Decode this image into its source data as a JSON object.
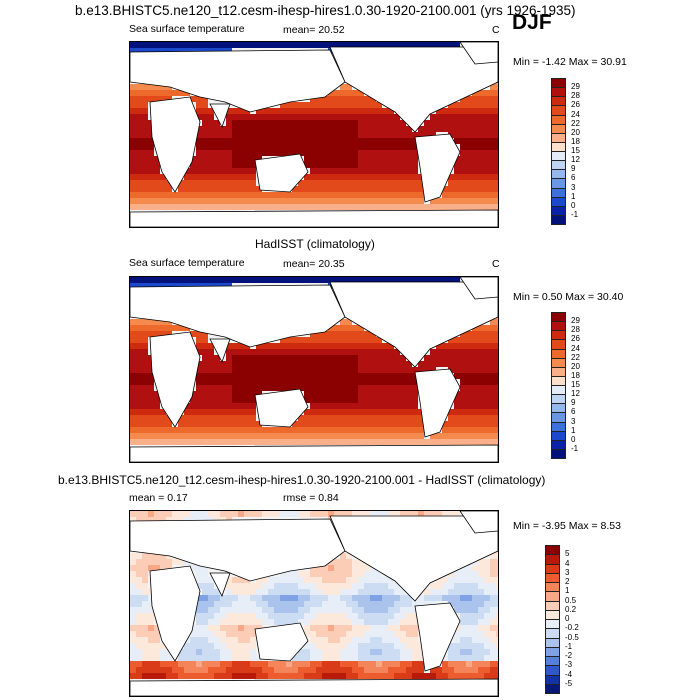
{
  "season": "DJF",
  "chart_data": [
    {
      "type": "heatmap",
      "title": "b.e13.BHISTC5.ne120_t12.cesm-ihesp-hires1.0.30-1920-2100.001 (yrs 1926-1935)",
      "left_label": "Sea surface temperature",
      "mean_text": "mean=  20.52",
      "units": "C",
      "minmax_text": "Min =  -1.42 Max =  30.91",
      "min": -1.42,
      "max": 30.91,
      "colorbar_levels": [
        "29",
        "28",
        "26",
        "24",
        "22",
        "20",
        "18",
        "15",
        "12",
        "9",
        "6",
        "3",
        "1",
        "0",
        "-1"
      ],
      "colorbar_colors": [
        "#8b0000",
        "#b01010",
        "#cd2a10",
        "#e24a1c",
        "#ee6a2c",
        "#f58a4e",
        "#f9b08a",
        "#fde0cc",
        "#e4ecf8",
        "#bfd4f2",
        "#94b8ec",
        "#6a96e4",
        "#3e70dc",
        "#1c48cc",
        "#0a22a8",
        "#02127a"
      ]
    },
    {
      "type": "heatmap",
      "title": "HadISST (climatology)",
      "left_label": "Sea surface temperature",
      "mean_text": "mean=  20.35",
      "units": "C",
      "minmax_text": "Min =   0.50 Max =  30.40",
      "min": 0.5,
      "max": 30.4,
      "colorbar_levels": [
        "29",
        "28",
        "26",
        "24",
        "22",
        "20",
        "18",
        "15",
        "12",
        "9",
        "6",
        "3",
        "1",
        "0",
        "-1"
      ],
      "colorbar_colors": [
        "#8b0000",
        "#b01010",
        "#cd2a10",
        "#e24a1c",
        "#ee6a2c",
        "#f58a4e",
        "#f9b08a",
        "#fde0cc",
        "#e4ecf8",
        "#bfd4f2",
        "#94b8ec",
        "#6a96e4",
        "#3e70dc",
        "#1c48cc",
        "#0a22a8",
        "#02127a"
      ]
    },
    {
      "type": "heatmap",
      "title": "b.e13.BHISTC5.ne120_t12.cesm-ihesp-hires1.0.30-1920-2100.001 - HadISST (climatology)",
      "mean_text": "mean =   0.17",
      "rmse_text": "rmse =   0.84",
      "minmax_text": "Min =  -3.95 Max =   8.53",
      "min": -3.95,
      "max": 8.53,
      "colorbar_levels": [
        "5",
        "4",
        "3",
        "2",
        "1",
        "0.5",
        "0.2",
        "0",
        "-0.2",
        "-0.5",
        "-1",
        "-2",
        "-3",
        "-4",
        "-5"
      ],
      "colorbar_colors": [
        "#8b0000",
        "#b81a0a",
        "#d93a18",
        "#ec5c2e",
        "#f4845a",
        "#f8a886",
        "#fbcdb6",
        "#fde8dc",
        "#e8eef8",
        "#ccdcf2",
        "#a9c3ec",
        "#7ea2e4",
        "#5580dc",
        "#2e58cc",
        "#1232a8",
        "#06187a"
      ]
    }
  ]
}
